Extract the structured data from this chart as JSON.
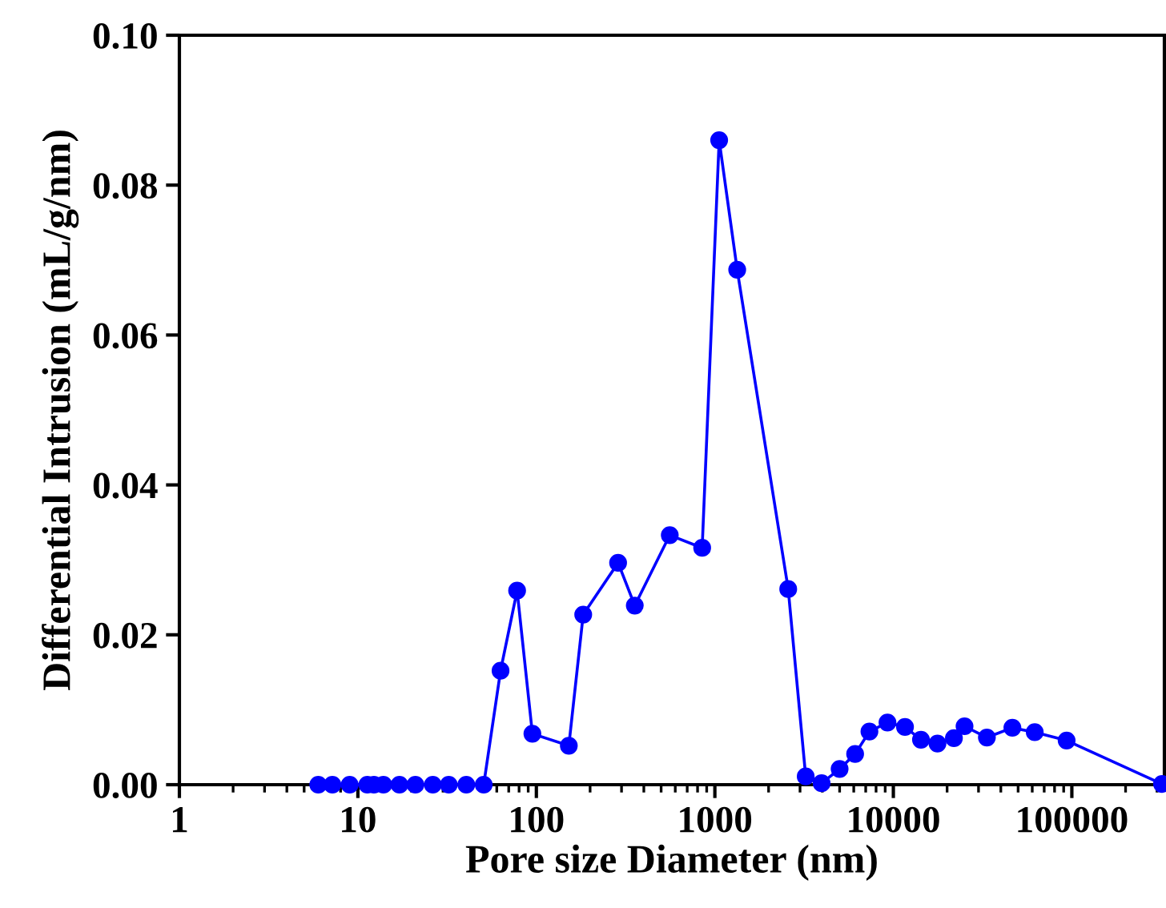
{
  "chart_data": {
    "type": "line",
    "xlabel": "Pore size Diameter (nm)",
    "ylabel": "Differential Intrusion (mL/g/nm)",
    "log": "x",
    "marker": "circle",
    "line_style": "solid",
    "xlim": [
      1,
      330000
    ],
    "xticks": [
      1,
      10,
      100,
      1000,
      10000,
      100000
    ],
    "ylim": [
      0,
      0.1
    ],
    "yticks": [
      {
        "value": 0,
        "label": "0.00"
      },
      {
        "value": 0.02,
        "label": "0.02"
      },
      {
        "value": 0.04,
        "label": "0.04"
      },
      {
        "value": 0.06,
        "label": "0.06"
      },
      {
        "value": 0.08,
        "label": "0.08"
      },
      {
        "value": 0.1,
        "label": "0.10"
      }
    ],
    "series": [
      {
        "color": "#0000ff",
        "x": [
          6.0,
          7.2,
          9.0,
          11.3,
          12.3,
          13.9,
          17.1,
          21,
          26.3,
          32.3,
          40.5,
          50.7,
          63,
          78,
          95,
          152,
          183,
          287,
          356,
          559,
          849,
          1057,
          1334,
          2576,
          3228,
          3963,
          5000,
          6107,
          7345,
          9270,
          11620,
          14280,
          17670,
          21840,
          25050,
          33420,
          46440,
          61970,
          93480,
          320000
        ],
        "values": [
          0,
          0,
          0,
          0,
          0,
          0,
          0,
          0,
          0,
          0,
          0,
          0,
          0.0152,
          0.0259,
          0.0068,
          0.0052,
          0.0227,
          0.0296,
          0.0239,
          0.0333,
          0.0316,
          0.086,
          0.0687,
          0.0261,
          0.0011,
          0.0002,
          0.0021,
          0.0041,
          0.0071,
          0.0083,
          0.0077,
          0.006,
          0.0055,
          0.0062,
          0.0078,
          0.0063,
          0.0076,
          0.007,
          0.0059,
          0.0001
        ]
      }
    ]
  }
}
